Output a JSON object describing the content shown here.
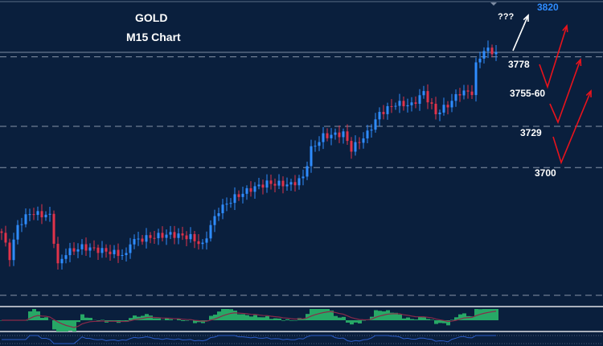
{
  "chart_data": {
    "type": "candlestick",
    "title": "GOLD",
    "subtitle": "M15 Chart",
    "ylim": [
      3610,
      3818
    ],
    "price_path": [
      {
        "i": 0,
        "p": 3654
      },
      {
        "i": 2,
        "p": 3637
      },
      {
        "i": 4,
        "p": 3659
      },
      {
        "i": 7,
        "p": 3668
      },
      {
        "i": 12,
        "p": 3666
      },
      {
        "i": 14,
        "p": 3631
      },
      {
        "i": 16,
        "p": 3640
      },
      {
        "i": 20,
        "p": 3644
      },
      {
        "i": 26,
        "p": 3641
      },
      {
        "i": 31,
        "p": 3638
      },
      {
        "i": 32,
        "p": 3648
      },
      {
        "i": 37,
        "p": 3651
      },
      {
        "i": 42,
        "p": 3653
      },
      {
        "i": 47,
        "p": 3651
      },
      {
        "i": 50,
        "p": 3645
      },
      {
        "i": 52,
        "p": 3659
      },
      {
        "i": 54,
        "p": 3670
      },
      {
        "i": 58,
        "p": 3679
      },
      {
        "i": 62,
        "p": 3685
      },
      {
        "i": 66,
        "p": 3689
      },
      {
        "i": 72,
        "p": 3688
      },
      {
        "i": 75,
        "p": 3693
      },
      {
        "i": 77,
        "p": 3713
      },
      {
        "i": 80,
        "p": 3722
      },
      {
        "i": 85,
        "p": 3724
      },
      {
        "i": 87,
        "p": 3713
      },
      {
        "i": 91,
        "p": 3724
      },
      {
        "i": 94,
        "p": 3738
      },
      {
        "i": 98,
        "p": 3745
      },
      {
        "i": 102,
        "p": 3744
      },
      {
        "i": 105,
        "p": 3753
      },
      {
        "i": 108,
        "p": 3738
      },
      {
        "i": 111,
        "p": 3744
      },
      {
        "i": 114,
        "p": 3753
      },
      {
        "i": 117,
        "p": 3753
      },
      {
        "i": 118,
        "p": 3772
      },
      {
        "i": 120,
        "p": 3783
      },
      {
        "i": 123,
        "p": 3781
      }
    ],
    "levels": [
      {
        "label": "3778",
        "value": 3778
      },
      {
        "label": "3729",
        "value": 3729
      },
      {
        "label": "3700",
        "value": 3700
      }
    ],
    "annotations": {
      "target_label": "3820",
      "question_label": "???",
      "zone_label": "3755-60"
    },
    "colors": {
      "up": "#2f8cff",
      "down": "#e0334a",
      "bg": "#0a1f3d",
      "arrow": "#e8131c",
      "target": "#2f8cff",
      "hist": "#27a866",
      "signal": "#8a2a4a"
    }
  }
}
